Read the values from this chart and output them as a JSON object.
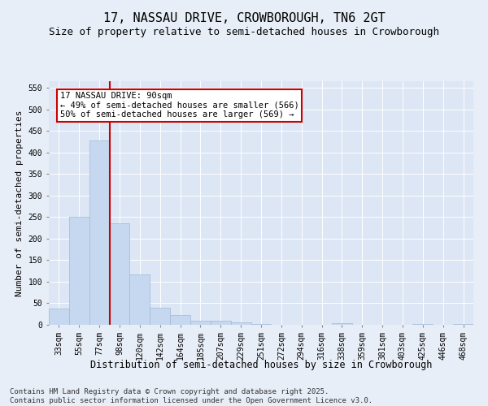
{
  "title": "17, NASSAU DRIVE, CROWBOROUGH, TN6 2GT",
  "subtitle": "Size of property relative to semi-detached houses in Crowborough",
  "xlabel": "Distribution of semi-detached houses by size in Crowborough",
  "ylabel": "Number of semi-detached properties",
  "footer": "Contains HM Land Registry data © Crown copyright and database right 2025.\nContains public sector information licensed under the Open Government Licence v3.0.",
  "categories": [
    "33sqm",
    "55sqm",
    "77sqm",
    "98sqm",
    "120sqm",
    "142sqm",
    "164sqm",
    "185sqm",
    "207sqm",
    "229sqm",
    "251sqm",
    "272sqm",
    "294sqm",
    "316sqm",
    "338sqm",
    "359sqm",
    "381sqm",
    "403sqm",
    "425sqm",
    "446sqm",
    "468sqm"
  ],
  "values": [
    37,
    251,
    428,
    236,
    117,
    39,
    22,
    10,
    10,
    5,
    1,
    0,
    0,
    0,
    3,
    0,
    0,
    0,
    1,
    0,
    1
  ],
  "bar_color": "#c5d8f0",
  "bar_edge_color": "#a0b8d8",
  "vline_x": 2.5,
  "vline_color": "#cc0000",
  "annotation_text": "17 NASSAU DRIVE: 90sqm\n← 49% of semi-detached houses are smaller (566)\n50% of semi-detached houses are larger (569) →",
  "annotation_box_color": "#ffffff",
  "annotation_box_edge": "#cc0000",
  "bg_color": "#e8eef7",
  "plot_bg_color": "#dce6f4",
  "ylim": [
    0,
    565
  ],
  "yticks": [
    0,
    50,
    100,
    150,
    200,
    250,
    300,
    350,
    400,
    450,
    500,
    550
  ],
  "title_fontsize": 11,
  "subtitle_fontsize": 9,
  "xlabel_fontsize": 8.5,
  "ylabel_fontsize": 8,
  "footer_fontsize": 6.5,
  "tick_fontsize": 7,
  "annot_fontsize": 7.5
}
